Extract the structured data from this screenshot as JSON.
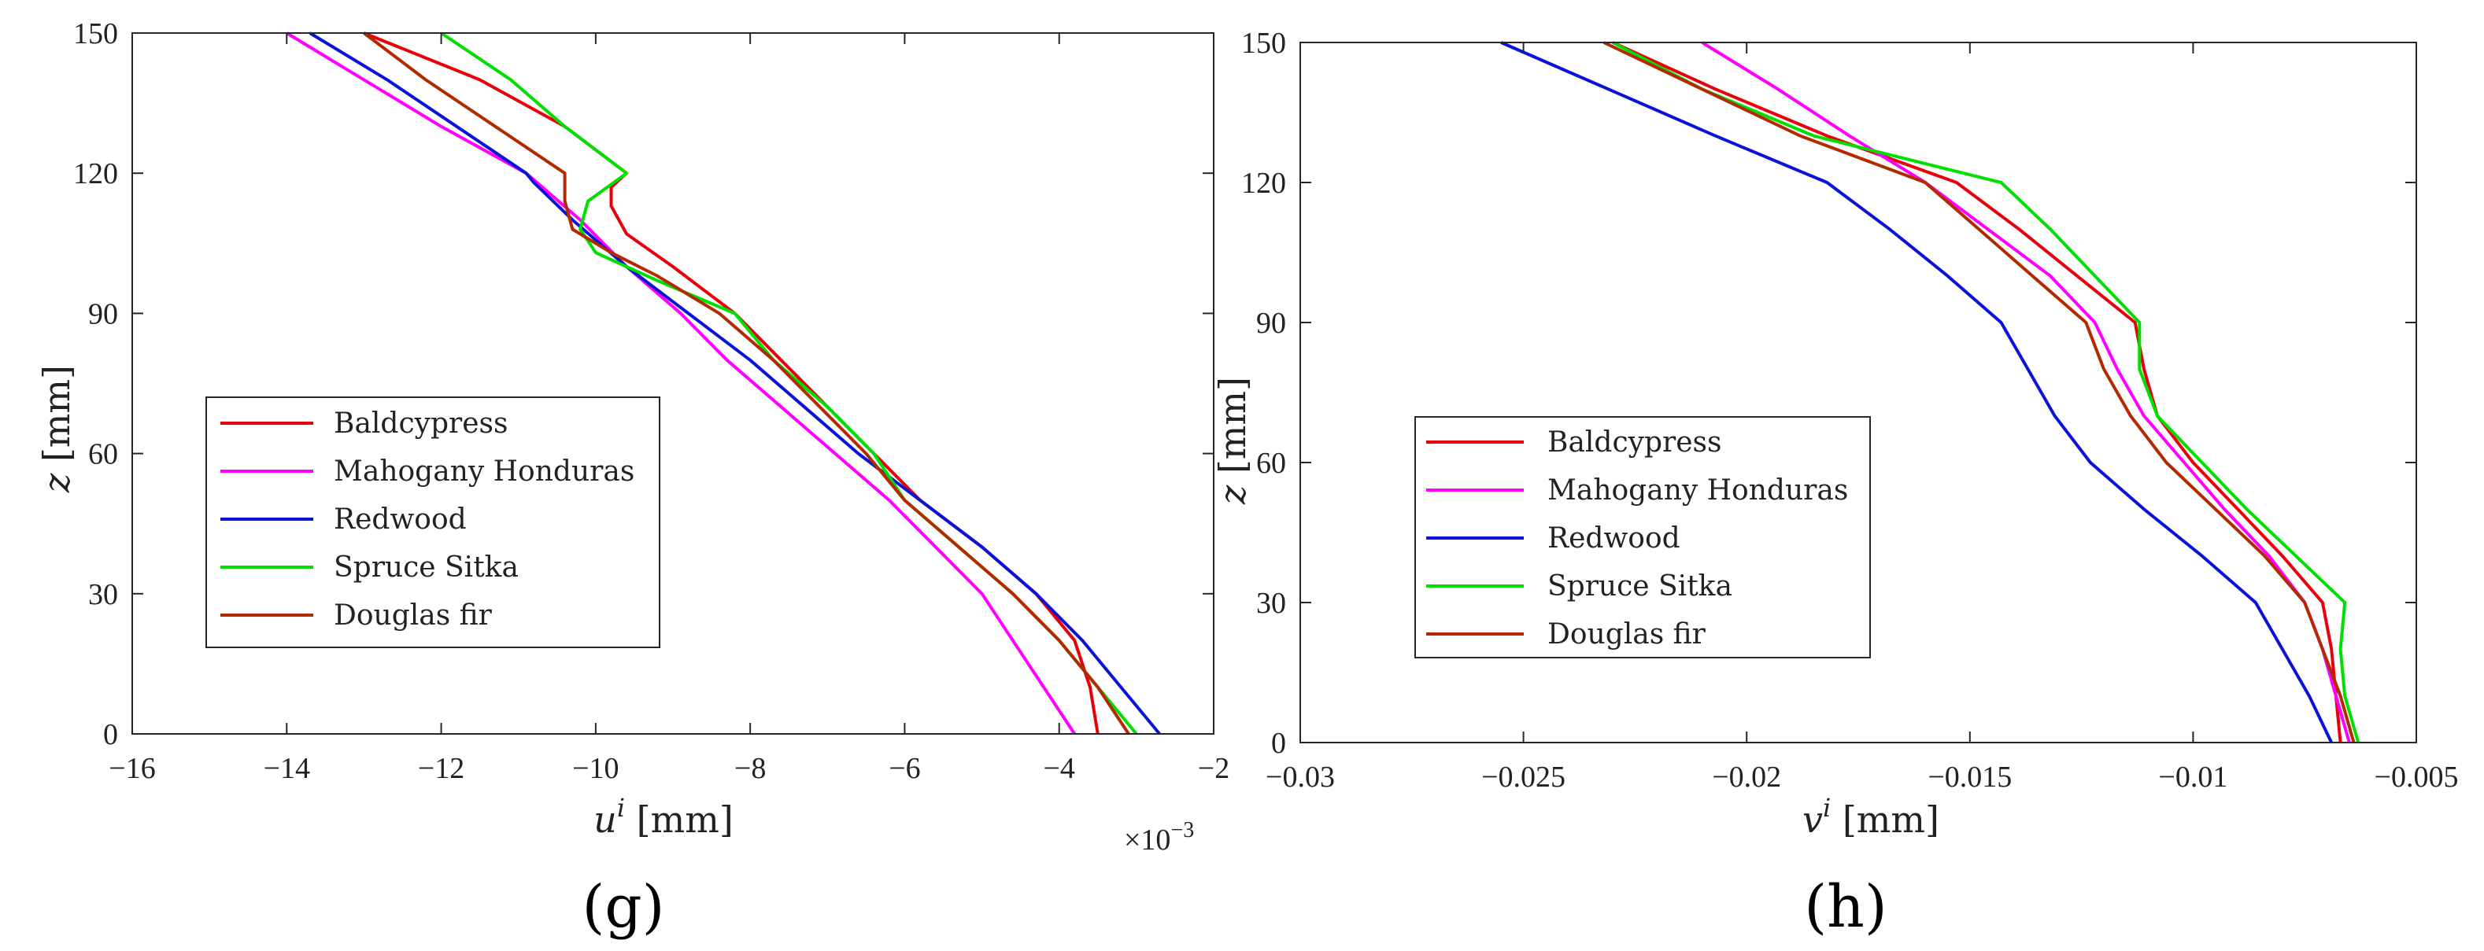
{
  "chart_data": [
    {
      "type": "line",
      "panel_label": "(g)",
      "xlabel_var": "u",
      "xlabel_sup": "i",
      "xlabel_unit": " [mm]",
      "ylabel_var": "z",
      "ylabel_unit": " [mm]",
      "xlim": [
        -16,
        -2
      ],
      "ylim": [
        0,
        150
      ],
      "xticks": [
        -16,
        -14,
        -12,
        -10,
        -8,
        -6,
        -4,
        -2
      ],
      "xtick_labels": [
        "−16",
        "−14",
        "−12",
        "−10",
        "−8",
        "−6",
        "−4",
        "−2"
      ],
      "yticks": [
        0,
        30,
        60,
        90,
        120,
        150
      ],
      "ytick_labels": [
        "0",
        "30",
        "60",
        "90",
        "120",
        "150"
      ],
      "multiplier_label": "×10",
      "multiplier_exp": "−3",
      "grid": false,
      "legend_position": "middle-left",
      "series": [
        {
          "name": "Baldcypress",
          "color": "#e8000b",
          "points": [
            [
              -3.5,
              0
            ],
            [
              -3.6,
              10
            ],
            [
              -3.8,
              20
            ],
            [
              -4.3,
              30
            ],
            [
              -5.0,
              40
            ],
            [
              -5.8,
              50
            ],
            [
              -6.4,
              60
            ],
            [
              -7.0,
              70
            ],
            [
              -7.6,
              80
            ],
            [
              -8.2,
              90
            ],
            [
              -9.0,
              100
            ],
            [
              -9.6,
              107
            ],
            [
              -9.8,
              113
            ],
            [
              -9.8,
              117
            ],
            [
              -9.6,
              120
            ],
            [
              -10.4,
              130
            ],
            [
              -11.5,
              140
            ],
            [
              -13.0,
              150
            ]
          ]
        },
        {
          "name": "Mahogany Honduras",
          "color": "#ff00ff",
          "points": [
            [
              -3.8,
              0
            ],
            [
              -4.2,
              10
            ],
            [
              -4.6,
              20
            ],
            [
              -5.0,
              30
            ],
            [
              -5.6,
              40
            ],
            [
              -6.2,
              50
            ],
            [
              -6.9,
              60
            ],
            [
              -7.6,
              70
            ],
            [
              -8.3,
              80
            ],
            [
              -8.9,
              90
            ],
            [
              -9.6,
              100
            ],
            [
              -10.2,
              110
            ],
            [
              -10.9,
              120
            ],
            [
              -12.0,
              130
            ],
            [
              -13.0,
              140
            ],
            [
              -14.0,
              150
            ]
          ]
        },
        {
          "name": "Redwood",
          "color": "#0a14d8",
          "points": [
            [
              -2.7,
              0
            ],
            [
              -3.2,
              10
            ],
            [
              -3.7,
              20
            ],
            [
              -4.3,
              30
            ],
            [
              -5.0,
              40
            ],
            [
              -5.8,
              50
            ],
            [
              -6.6,
              60
            ],
            [
              -7.3,
              70
            ],
            [
              -8.0,
              80
            ],
            [
              -8.8,
              90
            ],
            [
              -9.6,
              100
            ],
            [
              -10.3,
              110
            ],
            [
              -10.8,
              118
            ],
            [
              -10.9,
              120
            ],
            [
              -11.8,
              130
            ],
            [
              -12.7,
              140
            ],
            [
              -13.7,
              150
            ]
          ]
        },
        {
          "name": "Spruce Sitka",
          "color": "#00e000",
          "points": [
            [
              -3.0,
              0
            ],
            [
              -3.5,
              10
            ],
            [
              -4.0,
              20
            ],
            [
              -4.6,
              30
            ],
            [
              -5.3,
              40
            ],
            [
              -6.0,
              50
            ],
            [
              -6.4,
              60
            ],
            [
              -7.0,
              70
            ],
            [
              -7.7,
              80
            ],
            [
              -8.2,
              90
            ],
            [
              -9.2,
              97
            ],
            [
              -10.0,
              103
            ],
            [
              -10.2,
              108
            ],
            [
              -10.1,
              114
            ],
            [
              -9.6,
              120
            ],
            [
              -10.4,
              130
            ],
            [
              -11.1,
              140
            ],
            [
              -12.0,
              150
            ]
          ]
        },
        {
          "name": "Douglas fir",
          "color": "#b22a00",
          "points": [
            [
              -3.1,
              0
            ],
            [
              -3.5,
              10
            ],
            [
              -4.0,
              20
            ],
            [
              -4.6,
              30
            ],
            [
              -5.3,
              40
            ],
            [
              -6.0,
              50
            ],
            [
              -6.5,
              60
            ],
            [
              -7.1,
              70
            ],
            [
              -7.7,
              80
            ],
            [
              -8.4,
              90
            ],
            [
              -9.2,
              98
            ],
            [
              -9.8,
              103
            ],
            [
              -10.3,
              108
            ],
            [
              -10.4,
              114
            ],
            [
              -10.4,
              120
            ],
            [
              -11.3,
              130
            ],
            [
              -12.2,
              140
            ],
            [
              -13.0,
              150
            ]
          ]
        }
      ]
    },
    {
      "type": "line",
      "panel_label": "(h)",
      "xlabel_var": "v",
      "xlabel_sup": "i",
      "xlabel_unit": " [mm]",
      "ylabel_var": "z",
      "ylabel_unit": " [mm]",
      "xlim": [
        -0.03,
        -0.005
      ],
      "ylim": [
        0,
        150
      ],
      "xticks": [
        -0.03,
        -0.025,
        -0.02,
        -0.015,
        -0.01,
        -0.005
      ],
      "xtick_labels": [
        "−0.03",
        "−0.025",
        "−0.02",
        "−0.015",
        "−0.01",
        "−0.005"
      ],
      "yticks": [
        0,
        30,
        60,
        90,
        120,
        150
      ],
      "ytick_labels": [
        "0",
        "30",
        "60",
        "90",
        "120",
        "150"
      ],
      "grid": false,
      "legend_position": "middle-left",
      "series": [
        {
          "name": "Baldcypress",
          "color": "#e8000b",
          "points": [
            [
              -0.0067,
              0
            ],
            [
              -0.0068,
              10
            ],
            [
              -0.0069,
              20
            ],
            [
              -0.0071,
              30
            ],
            [
              -0.008,
              40
            ],
            [
              -0.009,
              50
            ],
            [
              -0.01,
              60
            ],
            [
              -0.0108,
              70
            ],
            [
              -0.0111,
              80
            ],
            [
              -0.0113,
              90
            ],
            [
              -0.0126,
              100
            ],
            [
              -0.0139,
              110
            ],
            [
              -0.0153,
              120
            ],
            [
              -0.0182,
              130
            ],
            [
              -0.0207,
              140
            ],
            [
              -0.023,
              150
            ]
          ]
        },
        {
          "name": "Mahogany Honduras",
          "color": "#ff00ff",
          "points": [
            [
              -0.0065,
              0
            ],
            [
              -0.0068,
              10
            ],
            [
              -0.0071,
              20
            ],
            [
              -0.0075,
              30
            ],
            [
              -0.0083,
              40
            ],
            [
              -0.0093,
              50
            ],
            [
              -0.0102,
              60
            ],
            [
              -0.0111,
              70
            ],
            [
              -0.0117,
              80
            ],
            [
              -0.0122,
              90
            ],
            [
              -0.0132,
              100
            ],
            [
              -0.0146,
              110
            ],
            [
              -0.016,
              120
            ],
            [
              -0.0177,
              130
            ],
            [
              -0.0193,
              140
            ],
            [
              -0.021,
              150
            ]
          ]
        },
        {
          "name": "Redwood",
          "color": "#0a14d8",
          "points": [
            [
              -0.0069,
              0
            ],
            [
              -0.0074,
              10
            ],
            [
              -0.008,
              20
            ],
            [
              -0.0086,
              30
            ],
            [
              -0.0098,
              40
            ],
            [
              -0.0111,
              50
            ],
            [
              -0.0123,
              60
            ],
            [
              -0.0131,
              70
            ],
            [
              -0.0137,
              80
            ],
            [
              -0.0143,
              90
            ],
            [
              -0.0155,
              100
            ],
            [
              -0.0168,
              110
            ],
            [
              -0.0182,
              120
            ],
            [
              -0.0207,
              130
            ],
            [
              -0.0231,
              140
            ],
            [
              -0.0255,
              150
            ]
          ]
        },
        {
          "name": "Spruce Sitka",
          "color": "#00e000",
          "points": [
            [
              -0.0063,
              0
            ],
            [
              -0.0066,
              10
            ],
            [
              -0.0067,
              20
            ],
            [
              -0.0066,
              30
            ],
            [
              -0.0077,
              40
            ],
            [
              -0.0088,
              50
            ],
            [
              -0.0098,
              60
            ],
            [
              -0.0108,
              70
            ],
            [
              -0.0112,
              80
            ],
            [
              -0.0112,
              90
            ],
            [
              -0.0122,
              100
            ],
            [
              -0.0132,
              110
            ],
            [
              -0.0143,
              120
            ],
            [
              -0.0185,
              130
            ],
            [
              -0.021,
              140
            ],
            [
              -0.023,
              150
            ]
          ]
        },
        {
          "name": "Douglas fir",
          "color": "#b22a00",
          "points": [
            [
              -0.0064,
              0
            ],
            [
              -0.0067,
              10
            ],
            [
              -0.0071,
              20
            ],
            [
              -0.0075,
              30
            ],
            [
              -0.0084,
              40
            ],
            [
              -0.0095,
              50
            ],
            [
              -0.0106,
              60
            ],
            [
              -0.0114,
              70
            ],
            [
              -0.012,
              80
            ],
            [
              -0.0124,
              90
            ],
            [
              -0.0136,
              100
            ],
            [
              -0.0148,
              110
            ],
            [
              -0.016,
              120
            ],
            [
              -0.0188,
              130
            ],
            [
              -0.021,
              140
            ],
            [
              -0.0232,
              150
            ]
          ]
        }
      ]
    }
  ]
}
